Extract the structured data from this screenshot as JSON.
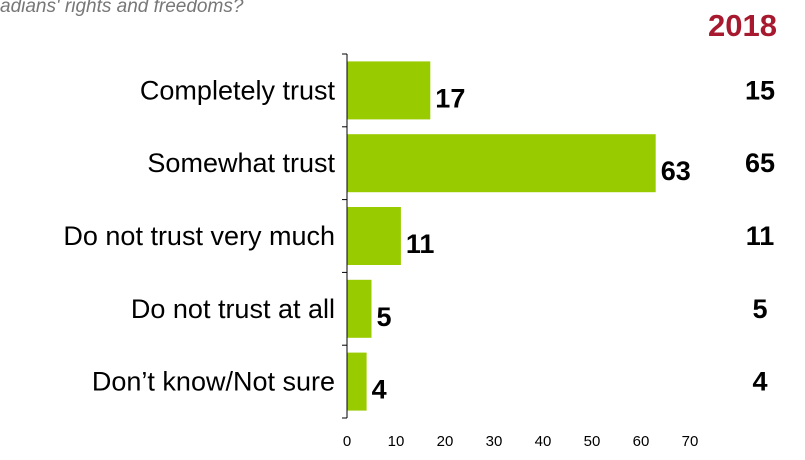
{
  "question_fragment": "adians' rights and freedoms?",
  "comparison_year": "2018",
  "colors": {
    "bar": "#99cc00",
    "year": "#a6192e",
    "axis": "#000000"
  },
  "chart_data": {
    "type": "bar",
    "orientation": "horizontal",
    "categories": [
      "Completely trust",
      "Somewhat trust",
      "Do not trust very much",
      "Do not trust at all",
      "Don’t know/Not sure"
    ],
    "values": [
      17,
      63,
      11,
      5,
      4
    ],
    "comparison": {
      "name": "2018",
      "values": [
        15,
        65,
        11,
        5,
        4
      ]
    },
    "xlim": [
      0,
      70
    ],
    "xticks": [
      0,
      10,
      20,
      30,
      40,
      50,
      60,
      70
    ],
    "title": "",
    "xlabel": "",
    "ylabel": "",
    "grid": false,
    "legend": "none"
  }
}
